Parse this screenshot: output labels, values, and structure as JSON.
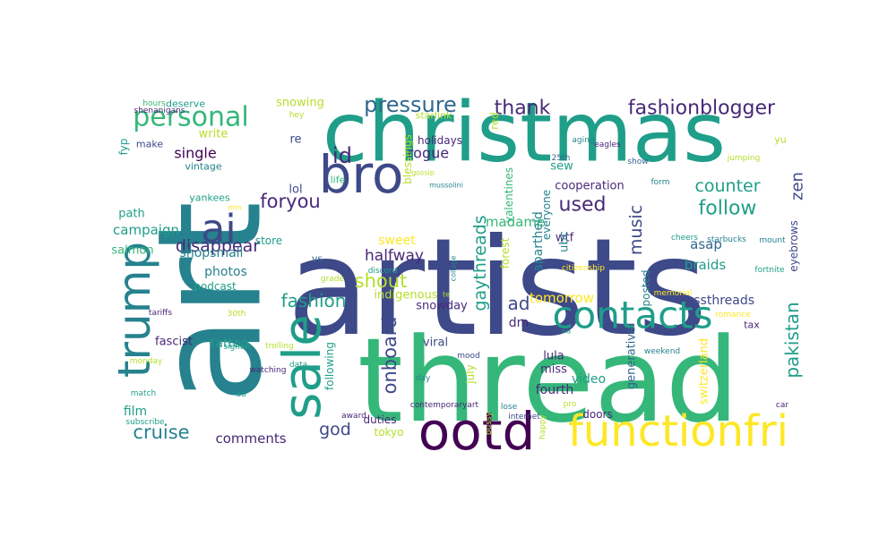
{
  "word_cloud": {
    "palette": [
      "#440154",
      "#482878",
      "#3e4989",
      "#31688e",
      "#26828e",
      "#1f9e89",
      "#35b779",
      "#6ece58",
      "#b5de2b",
      "#fde725"
    ],
    "words": [
      {
        "text": "artists"
      },
      {
        "text": "thread"
      },
      {
        "text": "art"
      },
      {
        "text": "christmas"
      },
      {
        "text": "ootd"
      },
      {
        "text": "functionfri"
      },
      {
        "text": "bro"
      },
      {
        "text": "contacts"
      },
      {
        "text": "sale"
      },
      {
        "text": "trump"
      },
      {
        "text": "personal"
      },
      {
        "text": "ai"
      },
      {
        "text": "pressure"
      },
      {
        "text": "fashionblogger"
      },
      {
        "text": "thank"
      },
      {
        "text": "id"
      },
      {
        "text": "foryou"
      },
      {
        "text": "follow"
      },
      {
        "text": "counter"
      },
      {
        "text": "music"
      },
      {
        "text": "used"
      },
      {
        "text": "zen"
      },
      {
        "text": "disappear"
      },
      {
        "text": "fashion"
      },
      {
        "text": "shout"
      },
      {
        "text": "ad"
      },
      {
        "text": "gaythreads"
      },
      {
        "text": "onboard"
      },
      {
        "text": "pakistan"
      },
      {
        "text": "cruise"
      },
      {
        "text": "god"
      },
      {
        "text": "halfway"
      },
      {
        "text": "madame"
      },
      {
        "text": "rogue"
      },
      {
        "text": "single"
      },
      {
        "text": "campaign"
      },
      {
        "text": "shopsmall"
      },
      {
        "text": "comments"
      },
      {
        "text": "film"
      },
      {
        "text": "vssthreads"
      },
      {
        "text": "tomorrow"
      },
      {
        "text": "snowday"
      },
      {
        "text": "apartheid"
      },
      {
        "text": "wtf"
      },
      {
        "text": "braids"
      },
      {
        "text": "asap"
      },
      {
        "text": "cooperation"
      },
      {
        "text": "fourth"
      },
      {
        "text": "video"
      },
      {
        "text": "miss"
      },
      {
        "text": "lula"
      },
      {
        "text": "viral"
      },
      {
        "text": "dm"
      },
      {
        "text": "tattoo"
      },
      {
        "text": "photos"
      },
      {
        "text": "fascist"
      },
      {
        "text": "sweet"
      },
      {
        "text": "snowing"
      },
      {
        "text": "write"
      },
      {
        "text": "vintage"
      },
      {
        "text": "yankees"
      },
      {
        "text": "lol"
      },
      {
        "text": "re"
      },
      {
        "text": "life"
      },
      {
        "text": "holidays"
      },
      {
        "text": "sew"
      },
      {
        "text": "ubc"
      },
      {
        "text": "posted"
      },
      {
        "text": "everyone"
      },
      {
        "text": "generative"
      },
      {
        "text": "switzerland"
      },
      {
        "text": "eyebrows"
      },
      {
        "text": "fyp"
      },
      {
        "text": "path"
      },
      {
        "text": "salmon"
      },
      {
        "text": "store"
      },
      {
        "text": "podcast"
      },
      {
        "text": "indigenous"
      },
      {
        "text": "duties"
      },
      {
        "text": "tokyo"
      },
      {
        "text": "doors"
      },
      {
        "text": "following"
      },
      {
        "text": "july"
      },
      {
        "text": "valentines"
      },
      {
        "text": "forest"
      },
      {
        "text": "blessings"
      },
      {
        "text": "red"
      },
      {
        "text": "deserve"
      },
      {
        "text": "make"
      },
      {
        "text": "tax"
      },
      {
        "text": "vs"
      },
      {
        "text": "yu"
      },
      {
        "text": "starlink"
      },
      {
        "text": "aging"
      },
      {
        "text": "eagles"
      },
      {
        "text": "show"
      },
      {
        "text": "25th"
      },
      {
        "text": "jumping"
      },
      {
        "text": "form"
      },
      {
        "text": "mussolini"
      },
      {
        "text": "gossip"
      },
      {
        "text": "cheers"
      },
      {
        "text": "starbucks"
      },
      {
        "text": "mount"
      },
      {
        "text": "fortnite"
      },
      {
        "text": "citizenship"
      },
      {
        "text": "discord"
      },
      {
        "text": "grade"
      },
      {
        "text": "collage"
      },
      {
        "text": "memorial"
      },
      {
        "text": "romance"
      },
      {
        "text": "weekend"
      },
      {
        "text": "na"
      },
      {
        "text": "mood"
      },
      {
        "text": "day"
      },
      {
        "text": "internet"
      },
      {
        "text": "pro"
      },
      {
        "text": "happy"
      },
      {
        "text": "lose"
      },
      {
        "text": "pussy"
      },
      {
        "text": "award"
      },
      {
        "text": "contemporaryart"
      },
      {
        "text": "car"
      },
      {
        "text": "da"
      },
      {
        "text": "subscribe"
      },
      {
        "text": "match"
      },
      {
        "text": "monday"
      },
      {
        "text": "trolling"
      },
      {
        "text": "data"
      },
      {
        "text": "watching"
      },
      {
        "text": "signals"
      },
      {
        "text": "30th"
      },
      {
        "text": "tariffs"
      },
      {
        "text": "te"
      },
      {
        "text": "hours"
      },
      {
        "text": "shenanigans"
      },
      {
        "text": "hey"
      },
      {
        "text": "mm"
      }
    ]
  }
}
